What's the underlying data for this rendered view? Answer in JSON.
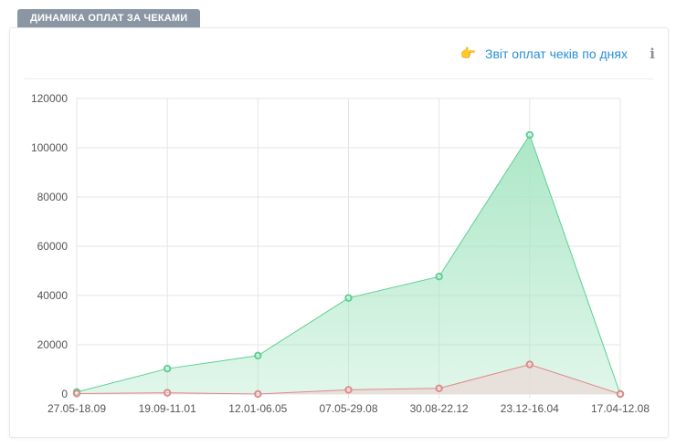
{
  "tab": {
    "label": "ДИНАМІКА ОПЛАТ ЗА ЧЕКАМИ"
  },
  "header": {
    "report_link": "Звіт оплат чеків по днях",
    "info": "i"
  },
  "colors": {
    "green_line": "#5ccf92",
    "green_fill": "#a8e6c4",
    "red_line": "#e08a8a",
    "red_fill": "#e9dcd8"
  },
  "chart_data": {
    "type": "area",
    "categories": [
      "27.05-18.09",
      "19.09-11.01",
      "12.01-06.05",
      "07.05-29.08",
      "30.08-22.12",
      "23.12-16.04",
      "17.04-12.08"
    ],
    "series": [
      {
        "values": [
          800,
          10300,
          15600,
          39000,
          47700,
          105200,
          0
        ]
      },
      {
        "values": [
          200,
          500,
          0,
          1700,
          2300,
          12000,
          0
        ]
      }
    ],
    "ylim": [
      0,
      120000
    ],
    "yticks": [
      0,
      20000,
      40000,
      60000,
      80000,
      100000,
      120000
    ],
    "grid": true,
    "xlabel": "",
    "ylabel": "",
    "title": ""
  }
}
